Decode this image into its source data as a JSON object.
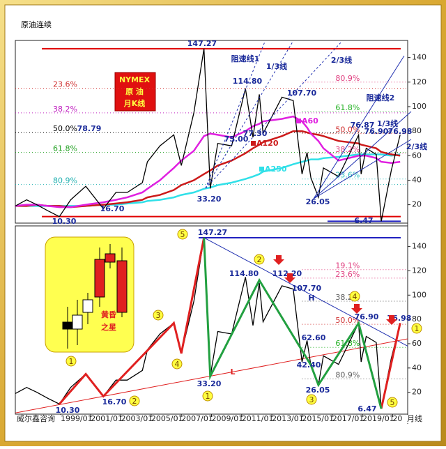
{
  "title": "原油连续",
  "source": "威尔鑫咨询",
  "period": "月线",
  "chart_data": [
    {
      "type": "line",
      "xlim": [
        "1996/01",
        "2022/01"
      ],
      "ylim": [
        5,
        154
      ],
      "yticks": [
        20,
        40,
        60,
        80,
        100,
        120,
        140
      ],
      "x": [
        "1996/01",
        "1996/10",
        "1997/06",
        "1998/03",
        "1998/12",
        "1999/09",
        "2000/09",
        "2001/11",
        "2002/09",
        "2003/06",
        "2004/06",
        "2004/10",
        "2005/08",
        "2006/07",
        "2007/01",
        "2007/11",
        "2008/07",
        "2008/12",
        "2009/06",
        "2010/05",
        "2011/04",
        "2011/10",
        "2012/03",
        "2012/06",
        "2013/09",
        "2014/06",
        "2015/01",
        "2015/05",
        "2015/08",
        "2016/02",
        "2016/06",
        "2017/06",
        "2018/10",
        "2018/12",
        "2019/04",
        "2019/12",
        "2020/04",
        "2020/12",
        "2021/07"
      ],
      "series": [
        {
          "color": "#000000",
          "values": [
            19,
            24,
            20,
            15,
            10.3,
            24,
            35,
            16.7,
            30,
            30,
            38,
            55,
            68,
            77,
            52,
            95,
            147.27,
            33.2,
            70,
            68,
            114.8,
            75,
            110,
            78,
            107.7,
            105,
            45,
            62.6,
            42,
            26.05,
            50,
            43,
            76.9,
            45,
            66,
            61,
            6.47,
            48,
            76.98
          ]
        },
        {
          "name": "A60",
          "color": "#e020e0",
          "values": [
            19,
            20,
            20,
            19,
            18,
            18,
            20,
            22,
            24,
            26,
            30,
            33,
            40,
            50,
            56,
            64,
            76,
            78,
            77,
            75,
            80,
            84,
            86,
            88,
            90,
            92,
            88,
            83,
            78,
            72,
            66,
            56,
            60,
            60,
            60,
            58,
            55,
            54,
            55
          ]
        },
        {
          "name": "A120",
          "color": "#cc1a1a",
          "values": [
            19,
            19,
            20,
            19,
            19,
            18,
            19,
            20,
            21,
            22,
            24,
            26,
            28,
            32,
            36,
            40,
            45,
            48,
            52,
            56,
            62,
            66,
            69,
            71,
            76,
            80,
            80,
            79,
            78,
            77,
            76,
            72,
            70,
            69,
            68,
            66,
            63,
            61,
            60
          ]
        },
        {
          "name": "A250",
          "color": "#30e0e8",
          "values": [
            19,
            19,
            19,
            19,
            19,
            19,
            19,
            20,
            20,
            21,
            22,
            23,
            24,
            26,
            28,
            30,
            33,
            34,
            36,
            38,
            41,
            43,
            45,
            47,
            50,
            53,
            55,
            56,
            57,
            57,
            58,
            59,
            61,
            61,
            61,
            61,
            61,
            60,
            61
          ]
        }
      ],
      "levels": [
        {
          "label": "23.6%",
          "value": 114.95,
          "color": "#d03030",
          "start": "1996/01"
        },
        {
          "label": "38.2%",
          "value": 94.95,
          "color": "#c020c0",
          "start": "1996/01"
        },
        {
          "label": "50.0%",
          "value": 78.79,
          "color": "#000000",
          "start": "1996/01"
        },
        {
          "label": "61.8%",
          "value": 62.62,
          "color": "#20a020",
          "start": "1996/01"
        },
        {
          "label": "80.9%",
          "value": 36.46,
          "color": "#20b0b0",
          "start": "1996/01"
        },
        {
          "label": "80.9%",
          "value": 120,
          "color": "#e04080",
          "start": "2015/01"
        },
        {
          "label": "61.8%",
          "value": 96,
          "color": "#20b020",
          "start": "2015/01"
        },
        {
          "label": "50.0%",
          "value": 78,
          "color": "#d03030",
          "start": "2015/01"
        },
        {
          "label": "38.2%",
          "value": 62,
          "color": "#e04080",
          "start": "2015/01"
        },
        {
          "label": "23.6%",
          "value": 41,
          "color": "#30c0c0",
          "start": "2015/01"
        }
      ],
      "hlines": [
        {
          "value": 147.27,
          "color": "#e00000"
        },
        {
          "value": 10.3,
          "color": "#e00000"
        },
        {
          "value": 6.47,
          "color": "#2020c0"
        }
      ],
      "annotations": [
        "147.27",
        "阻速线1",
        "1/3线",
        "2/3线",
        "114.80",
        "107.70",
        "78.79",
        "75.00",
        "77.30",
        "76.87",
        "76.90",
        "76.98",
        "阻速线2",
        "1/3线",
        "2/3线",
        "33.20",
        "16.70",
        "10.30",
        "26.05",
        "6.47",
        "NYMEX",
        "原 油",
        "月K线"
      ]
    },
    {
      "type": "line",
      "xlim": [
        "1996/01",
        "2022/01"
      ],
      "ylim": [
        2,
        157
      ],
      "yticks": [
        20,
        40,
        60,
        80,
        100,
        120,
        140
      ],
      "xticks": [
        "1999/01",
        "2001/01",
        "2003/01",
        "2005/01",
        "2007/01",
        "2009/01",
        "2011/01",
        "2013/01",
        "2015/01",
        "2017/01",
        "2019/01",
        "2021/01"
      ],
      "x": [
        "1998/12",
        "2000/09",
        "2001/11",
        "2006/07",
        "2007/01",
        "2008/07",
        "2008/12",
        "2012/03",
        "2015/08",
        "2016/02",
        "2018/10",
        "2020/04",
        "2021/07"
      ],
      "series": [
        {
          "color": "#e02020",
          "values": [
            10.3,
            35,
            16.7,
            77,
            52,
            147.27,
            null,
            null,
            null,
            null,
            null,
            6.47,
            76.98
          ]
        },
        {
          "color": "#22a040",
          "values": [
            null,
            null,
            null,
            null,
            null,
            147.27,
            33.2,
            112.2,
            42.4,
            26.05,
            76.9,
            6.47,
            null
          ]
        }
      ],
      "levels": [
        {
          "label": "19.1%",
          "value": 121,
          "color": "#e04080",
          "start": "2015/01"
        },
        {
          "label": "23.6%",
          "value": 114,
          "color": "#e04080",
          "start": "2015/01"
        },
        {
          "label": "38.2%",
          "value": 95,
          "color": "#606060",
          "start": "2015/01"
        },
        {
          "label": "50.0%",
          "value": 76,
          "color": "#d03030",
          "start": "2015/01"
        },
        {
          "label": "61.8%",
          "value": 57,
          "color": "#20b020",
          "start": "2015/01"
        },
        {
          "label": "80.9%",
          "value": 31,
          "color": "#606060",
          "start": "2015/01"
        }
      ],
      "hlines": [
        {
          "value": 147.27,
          "color": "#2020c0"
        }
      ],
      "annotations": [
        "147.27",
        "114.80",
        "112.20",
        "107.70",
        "H",
        "76.90",
        "76.98",
        "62.60",
        "42.40",
        "26.05",
        "L",
        "33.20",
        "16.70",
        "10.30",
        "6.47",
        "黄昏",
        "之星"
      ],
      "circles": [
        "5",
        "2",
        "3",
        "4",
        "1",
        "2",
        "1",
        "3",
        "4",
        "5",
        "1"
      ]
    }
  ]
}
